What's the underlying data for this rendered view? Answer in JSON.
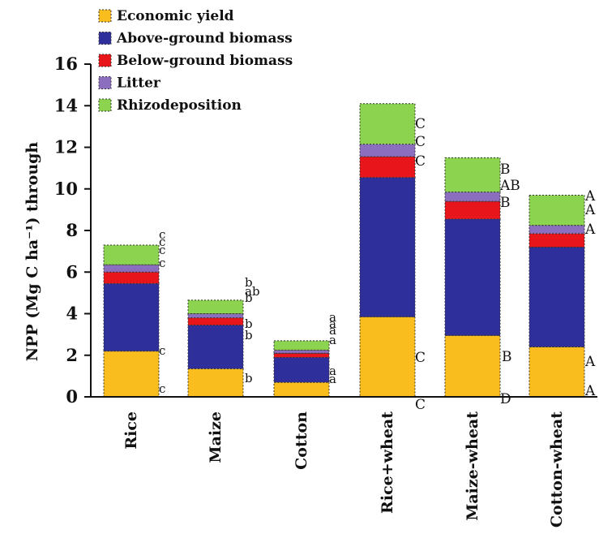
{
  "chart_data": {
    "type": "bar",
    "stacked": true,
    "title": "",
    "xlabel": "",
    "ylabel": "NPP (Mg C ha⁻¹) through",
    "ylim": [
      0,
      16
    ],
    "yticks": [
      0,
      2,
      4,
      6,
      8,
      10,
      12,
      14,
      16
    ],
    "grid": false,
    "legend_placement": "top-left",
    "categories": [
      "Rice",
      "Maize",
      "Cotton",
      "Rice+wheat",
      "Maize-wheat",
      "Cotton-wheat"
    ],
    "series": [
      {
        "name": "Economic yield",
        "color": "#f9bd1d",
        "values": [
          2.2,
          1.35,
          0.7,
          3.85,
          2.95,
          2.4
        ]
      },
      {
        "name": "Above-ground biomass",
        "color": "#2f2f9c",
        "values": [
          3.25,
          2.1,
          1.2,
          6.7,
          5.6,
          4.8
        ]
      },
      {
        "name": "Below-ground biomass",
        "color": "#e8161b",
        "values": [
          0.55,
          0.35,
          0.2,
          1.0,
          0.85,
          0.65
        ]
      },
      {
        "name": "Litter",
        "color": "#8b6fbe",
        "values": [
          0.35,
          0.2,
          0.15,
          0.6,
          0.45,
          0.4
        ]
      },
      {
        "name": "Rhizodeposition",
        "color": "#8cd44f",
        "values": [
          0.95,
          0.65,
          0.45,
          1.95,
          1.65,
          1.45
        ]
      }
    ],
    "annotations": [
      [
        "c",
        "c",
        "c",
        "c",
        "c",
        "c"
      ],
      [
        "b",
        "b",
        "b",
        "b",
        "ab",
        "b"
      ],
      [
        "a",
        "a",
        "a",
        "a",
        "a",
        "a"
      ],
      [
        "C",
        "C",
        "C",
        "C",
        "C"
      ],
      [
        "D",
        "B",
        "B",
        "AB",
        "B"
      ],
      [
        "A",
        "A",
        "A",
        "A",
        "A"
      ]
    ]
  }
}
